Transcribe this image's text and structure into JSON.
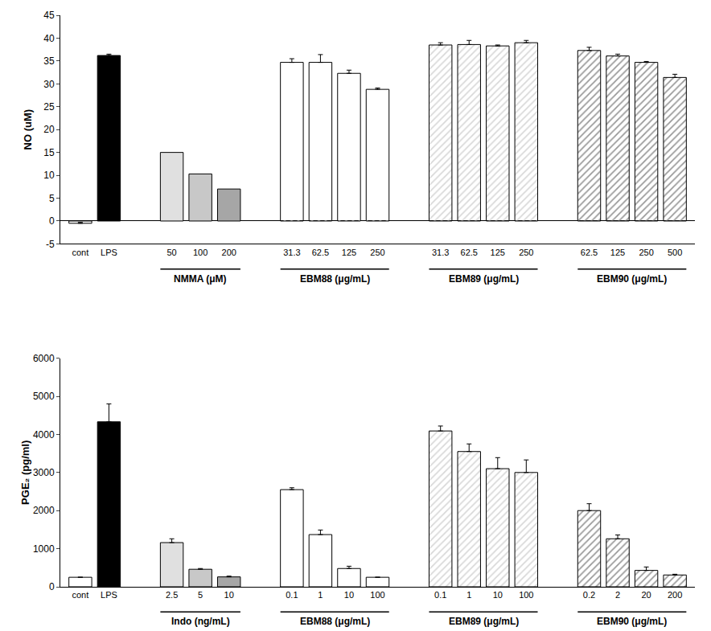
{
  "chart_data": [
    {
      "type": "bar",
      "y_label": "NO (uM)",
      "ylim": [
        -5,
        45
      ],
      "yticks": [
        -5,
        0,
        5,
        10,
        15,
        20,
        25,
        30,
        35,
        40,
        45
      ],
      "grid": false,
      "groups": [
        {
          "categories": [
            "cont",
            "LPS"
          ],
          "values": [
            -0.5,
            36.2
          ],
          "errors": [
            0.2,
            0.3
          ],
          "colors": [
            "#ffffff",
            "#000000"
          ],
          "marker": "solid"
        },
        {
          "label": "NMMA (μM)",
          "categories": [
            "50",
            "100",
            "200"
          ],
          "values": [
            15.0,
            10.3,
            7.0
          ],
          "colors": [
            "#e0e0e0",
            "#c8c8c8",
            "#a6a6a6"
          ],
          "marker": "solid"
        },
        {
          "label": "EBM88 (μg/mL)",
          "categories": [
            "31.3",
            "62.5",
            "125",
            "250"
          ],
          "values": [
            34.7,
            34.7,
            32.3,
            28.8
          ],
          "errors": [
            0.8,
            1.7,
            0.7,
            0.3
          ],
          "colors": [
            "#ffffff",
            "#ffffff",
            "#ffffff",
            "#ffffff"
          ],
          "marker": "hatched"
        },
        {
          "label": "EBM89 (μg/mL)",
          "categories": [
            "31.3",
            "62.5",
            "125",
            "250"
          ],
          "values": [
            38.5,
            38.6,
            38.3,
            39.0
          ],
          "errors": [
            0.5,
            0.9,
            0.2,
            0.5
          ],
          "colors": [
            "#d9d9d9",
            "#d9d9d9",
            "#d9d9d9",
            "#d9d9d9"
          ],
          "marker": "hatched"
        },
        {
          "label": "EBM90 (μg/mL)",
          "categories": [
            "62.5",
            "125",
            "250",
            "500"
          ],
          "values": [
            37.3,
            36.1,
            34.7,
            31.4
          ],
          "errors": [
            0.7,
            0.4,
            0.2,
            0.7
          ],
          "colors": [
            "#9a9a9a",
            "#9a9a9a",
            "#9a9a9a",
            "#9a9a9a"
          ],
          "marker": "hatched"
        }
      ]
    },
    {
      "type": "bar",
      "y_label": "PGE₂ (pg/ml)",
      "ylim": [
        0,
        6000
      ],
      "yticks": [
        0,
        1000,
        2000,
        3000,
        4000,
        5000,
        6000
      ],
      "grid": false,
      "groups": [
        {
          "categories": [
            "cont",
            "LPS"
          ],
          "values": [
            250,
            4330
          ],
          "errors": [
            null,
            470
          ],
          "colors": [
            "#ffffff",
            "#000000"
          ],
          "marker": "solid"
        },
        {
          "label": "Indo (ng/mL)",
          "categories": [
            "2.5",
            "5",
            "10"
          ],
          "values": [
            1160,
            460,
            260
          ],
          "errors": [
            100,
            20,
            20
          ],
          "colors": [
            "#e0e0e0",
            "#c8c8c8",
            "#a6a6a6"
          ],
          "marker": "solid"
        },
        {
          "label": "EBM88 (μg/mL)",
          "categories": [
            "0.1",
            "1",
            "10",
            "100"
          ],
          "values": [
            2550,
            1370,
            480,
            250
          ],
          "errors": [
            50,
            120,
            60,
            null
          ],
          "colors": [
            "#ffffff",
            "#ffffff",
            "#ffffff",
            "#ffffff"
          ],
          "marker": "hatched"
        },
        {
          "label": "EBM89 (μg/mL)",
          "categories": [
            "0.1",
            "1",
            "10",
            "100"
          ],
          "values": [
            4090,
            3550,
            3100,
            3000
          ],
          "errors": [
            130,
            200,
            290,
            330
          ],
          "colors": [
            "#d9d9d9",
            "#d9d9d9",
            "#d9d9d9",
            "#d9d9d9"
          ],
          "marker": "hatched"
        },
        {
          "label": "EBM90 (μg/mL)",
          "categories": [
            "0.2",
            "2",
            "20",
            "200"
          ],
          "values": [
            2000,
            1260,
            430,
            310
          ],
          "errors": [
            180,
            100,
            90,
            20
          ],
          "colors": [
            "#9a9a9a",
            "#9a9a9a",
            "#9a9a9a",
            "#9a9a9a"
          ],
          "marker": "hatched"
        }
      ]
    }
  ]
}
